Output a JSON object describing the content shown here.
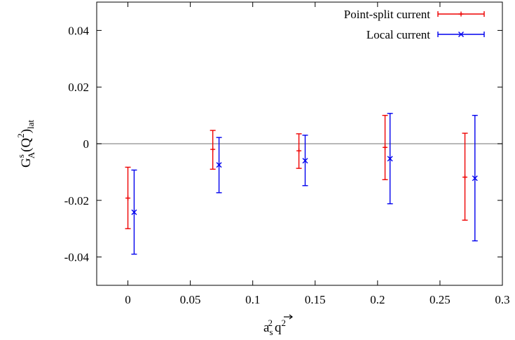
{
  "chart_data": {
    "type": "scatter",
    "title": "",
    "xlabel": {
      "base": "a",
      "sub": "s",
      "sup": "2",
      "vec": "q",
      "vec_sup": "2"
    },
    "ylabel": {
      "base": "G",
      "sup": "s",
      "sub": "A",
      "paren": "(Q",
      "paren_sup": "2",
      "close": ")",
      "tail_sub": "lat"
    },
    "xlim": [
      -0.025,
      0.3
    ],
    "ylim": [
      -0.05,
      0.05
    ],
    "xticks": [
      "0",
      "0.05",
      "0.1",
      "0.15",
      "0.2",
      "0.25",
      "0.3"
    ],
    "xtick_values": [
      0,
      0.05,
      0.1,
      0.15,
      0.2,
      0.25,
      0.3
    ],
    "yticks": [
      "-0.04",
      "-0.02",
      "0",
      "0.02",
      "0.04"
    ],
    "ytick_values": [
      -0.04,
      -0.02,
      0,
      0.02,
      0.04
    ],
    "reference_line_y": 0,
    "legend_position": "top-right",
    "series": [
      {
        "name": "Point-split current",
        "color": "#ee0000",
        "marker": "plus",
        "x": [
          0.0,
          0.068,
          0.137,
          0.206,
          0.27
        ],
        "y": [
          -0.0192,
          -0.002,
          -0.0025,
          -0.0013,
          -0.0118
        ],
        "ylow": [
          -0.03,
          -0.009,
          -0.0087,
          -0.0127,
          -0.027
        ],
        "yhigh": [
          -0.0083,
          0.0047,
          0.0035,
          0.01,
          0.0037
        ]
      },
      {
        "name": "Local current",
        "color": "#0000ee",
        "marker": "cross",
        "x": [
          0.005,
          0.073,
          0.142,
          0.21,
          0.278
        ],
        "y": [
          -0.0242,
          -0.0075,
          -0.006,
          -0.0053,
          -0.0122
        ],
        "ylow": [
          -0.039,
          -0.0173,
          -0.0148,
          -0.0212,
          -0.0343
        ],
        "yhigh": [
          -0.0093,
          0.0022,
          0.003,
          0.0107,
          0.01
        ]
      }
    ]
  }
}
